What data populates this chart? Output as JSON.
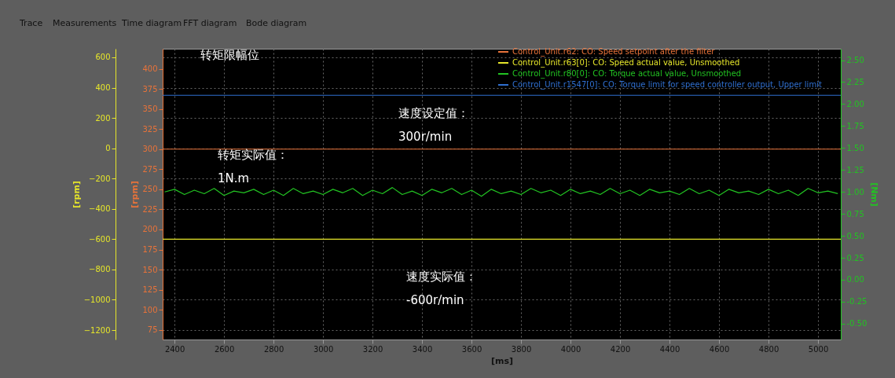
{
  "chart_data": {
    "type": "line",
    "xlabel": "[ms]",
    "ylabel": "[rpm]",
    "y2label": "[rpm]",
    "y3label": "[Nm]",
    "xlim": [
      2352,
      5092
    ],
    "xticks": [
      2400,
      2600,
      2800,
      3000,
      3200,
      3400,
      3600,
      3800,
      4000,
      4200,
      4400,
      4600,
      4800,
      5000
    ],
    "ylim": [
      63,
      425
    ],
    "yticks": [
      75,
      100,
      125,
      150,
      175,
      200,
      225,
      250,
      275,
      300,
      325,
      350,
      375,
      400
    ],
    "y2lim": [
      -1262,
      657
    ],
    "y2ticks": [
      -1200,
      -1000,
      -800,
      -600,
      -400,
      -200,
      0,
      200,
      400,
      600
    ],
    "y3lim": [
      -0.68,
      2.63
    ],
    "y3ticks": [
      {
        "value": -0.5,
        "label": "-0.50"
      },
      {
        "value": -0.25,
        "label": "-0.25"
      },
      {
        "value": 0,
        "label": "0.00"
      },
      {
        "value": 0.25,
        "label": "0.25"
      },
      {
        "value": 0.5,
        "label": "0.50"
      },
      {
        "value": 0.75,
        "label": "0.75"
      },
      {
        "value": 1,
        "label": "1.00"
      },
      {
        "value": 1.25,
        "label": "1.25"
      },
      {
        "value": 1.5,
        "label": "1.50"
      },
      {
        "value": 1.75,
        "label": "1.75"
      },
      {
        "value": 2,
        "label": "2.00"
      },
      {
        "value": 2.25,
        "label": "2.25"
      },
      {
        "value": 2.5,
        "label": "2.50"
      }
    ],
    "grid": true,
    "legend": "top right",
    "line_style": "solid",
    "series": [
      {
        "name": "Control_Unit.r62: CO: Speed setpoint after the filter",
        "color": "#e8733a",
        "axis": "y",
        "x": [
          2352,
          5092
        ],
        "values": [
          300,
          300
        ]
      },
      {
        "name": "Control_Unit.r63[0]: CO: Speed actual value, Unsmoothed",
        "color": "#e6e62a",
        "axis": "y2",
        "x": [
          2352,
          5092
        ],
        "values": [
          -600,
          -600
        ]
      },
      {
        "name": "Control_Unit.r80[0]: CO: Torque actual value, Unsmoothed",
        "color": "#22c322",
        "axis": "y3",
        "x": [
          2360,
          2400,
          2440,
          2480,
          2520,
          2560,
          2600,
          2640,
          2680,
          2720,
          2760,
          2800,
          2840,
          2880,
          2920,
          2960,
          3000,
          3040,
          3080,
          3120,
          3160,
          3200,
          3240,
          3280,
          3320,
          3360,
          3400,
          3440,
          3480,
          3520,
          3560,
          3600,
          3640,
          3680,
          3720,
          3760,
          3800,
          3840,
          3880,
          3920,
          3960,
          4000,
          4040,
          4080,
          4120,
          4160,
          4200,
          4240,
          4280,
          4320,
          4360,
          4400,
          4440,
          4480,
          4520,
          4560,
          4600,
          4640,
          4680,
          4720,
          4760,
          4800,
          4840,
          4880,
          4920,
          4960,
          5000,
          5040,
          5080
        ],
        "values": [
          1.0,
          1.03,
          0.97,
          1.02,
          0.98,
          1.04,
          0.96,
          1.01,
          0.99,
          1.03,
          0.97,
          1.02,
          0.96,
          1.04,
          0.98,
          1.01,
          0.97,
          1.03,
          0.99,
          1.04,
          0.96,
          1.02,
          0.98,
          1.05,
          0.97,
          1.01,
          0.96,
          1.03,
          0.99,
          1.04,
          0.97,
          1.02,
          0.95,
          1.03,
          0.98,
          1.01,
          0.97,
          1.04,
          0.99,
          1.02,
          0.96,
          1.03,
          0.98,
          1.01,
          0.97,
          1.04,
          0.98,
          1.02,
          0.96,
          1.03,
          0.99,
          1.01,
          0.97,
          1.04,
          0.98,
          1.02,
          0.96,
          1.03,
          0.99,
          1.01,
          0.97,
          1.03,
          0.98,
          1.02,
          0.96,
          1.04,
          0.99,
          1.01,
          0.98
        ]
      },
      {
        "name": "Control_Unit.r1547[0]: CO: Torque limit for speed controller output, Upper limit",
        "color": "#2f6fd0",
        "axis": "y3",
        "x": [
          2352,
          5092
        ],
        "values": [
          2.1,
          2.1
        ]
      }
    ],
    "annotations": [
      "Trace",
      "Measurements",
      "Time diagram",
      "FFT diagram",
      "Bode diagram",
      "转矩限幅位",
      "速度设定值：\n300r/min",
      "转矩实际值：\n1N.m",
      "速度实际值：\n-600r/min"
    ]
  }
}
